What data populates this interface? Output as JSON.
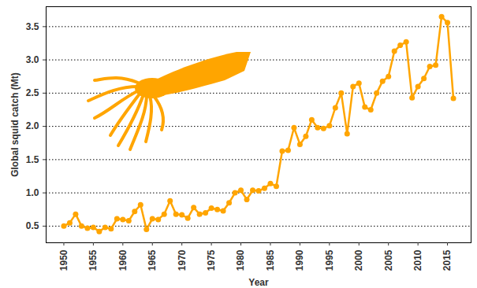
{
  "chart_data": {
    "type": "line",
    "x_label": "Year",
    "y_label": "Global squid catch (Mt)",
    "x": [
      1950,
      1951,
      1952,
      1953,
      1954,
      1955,
      1956,
      1957,
      1958,
      1959,
      1960,
      1961,
      1962,
      1963,
      1964,
      1965,
      1966,
      1967,
      1968,
      1969,
      1970,
      1971,
      1972,
      1973,
      1974,
      1975,
      1976,
      1977,
      1978,
      1979,
      1980,
      1981,
      1982,
      1983,
      1984,
      1985,
      1986,
      1987,
      1988,
      1989,
      1990,
      1991,
      1992,
      1993,
      1994,
      1995,
      1996,
      1997,
      1998,
      1999,
      2000,
      2001,
      2002,
      2003,
      2004,
      2005,
      2006,
      2007,
      2008,
      2009,
      2010,
      2011,
      2012,
      2013,
      2014,
      2015,
      2016
    ],
    "values": [
      0.5,
      0.55,
      0.68,
      0.5,
      0.47,
      0.48,
      0.42,
      0.48,
      0.46,
      0.61,
      0.6,
      0.58,
      0.72,
      0.82,
      0.45,
      0.61,
      0.6,
      0.68,
      0.88,
      0.68,
      0.67,
      0.62,
      0.78,
      0.68,
      0.7,
      0.77,
      0.75,
      0.73,
      0.85,
      1.0,
      1.04,
      0.9,
      1.04,
      1.03,
      1.07,
      1.14,
      1.1,
      1.63,
      1.64,
      1.98,
      1.73,
      1.85,
      2.1,
      1.98,
      1.97,
      2.01,
      2.28,
      2.5,
      1.89,
      2.6,
      2.65,
      2.29,
      2.25,
      2.5,
      2.68,
      2.75,
      3.13,
      3.22,
      3.27,
      2.43,
      2.6,
      2.72,
      2.9,
      2.92,
      3.65,
      3.56,
      2.42
    ],
    "color": "#FFA500",
    "marker": "circle",
    "line_style": "solid",
    "xlim": [
      1947,
      2019
    ],
    "xticks": [
      1950,
      1955,
      1960,
      1965,
      1970,
      1975,
      1980,
      1985,
      1990,
      1995,
      2000,
      2005,
      2010,
      2015
    ],
    "ylim": [
      0.25,
      3.8
    ],
    "yticks": [
      0.5,
      {
        "value": 1,
        "label": "1.0"
      },
      1.5,
      {
        "value": 2,
        "label": "2.0"
      },
      2.5,
      {
        "value": 3,
        "label": "3.0"
      },
      3.5
    ],
    "grid": true
  }
}
